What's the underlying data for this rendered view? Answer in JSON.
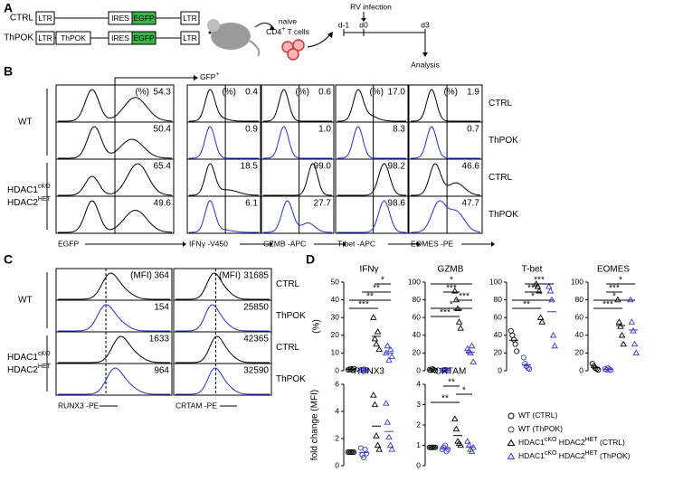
{
  "panel_labels": [
    "A",
    "B",
    "C",
    "D"
  ],
  "panel_a": {
    "constructs": [
      {
        "name": "CTRL",
        "parts": [
          "LTR",
          "IRES",
          "EGFP",
          "LTR"
        ]
      },
      {
        "name": "ThPOK",
        "parts": [
          "LTR",
          "ThPOK",
          "IRES",
          "EGFP",
          "LTR"
        ]
      }
    ],
    "cells": [
      "naive",
      "CD4",
      "+",
      " T cells"
    ],
    "infection": "RV infection",
    "days": [
      "d-1",
      "d0",
      "d3"
    ],
    "analysis": "Analysis"
  },
  "panel_b": {
    "gate": [
      "GFP",
      "+"
    ],
    "percent_label": "(%)",
    "groups": {
      "wt": "WT",
      "hdac": [
        [
          "HDAC1",
          "cKO"
        ],
        [
          "HDAC2",
          "HET"
        ]
      ]
    },
    "rows": [
      "CTRL",
      "ThPOK",
      "CTRL",
      "ThPOK"
    ],
    "columns": [
      {
        "axis": "EGFP",
        "values": [
          "54.3",
          "50.4",
          "65.4",
          "49.6"
        ]
      },
      {
        "axis": "IFNγ -V450",
        "values": [
          "0.4",
          "0.9",
          "18.5",
          "6.1"
        ]
      },
      {
        "axis": "GZMB -APC",
        "values": [
          "0.6",
          "1.0",
          "99.0",
          "27.7"
        ]
      },
      {
        "axis": "T-bet -APC",
        "values": [
          "17.0",
          "8.3",
          "98.2",
          "98.6"
        ]
      },
      {
        "axis": "EOMES -PE",
        "values": [
          "1.9",
          "0.7",
          "46.6",
          "47.7"
        ]
      }
    ]
  },
  "panel_c": {
    "mfi_label": "(MFI)",
    "groups": {
      "wt": "WT",
      "hdac": [
        [
          "HDAC1",
          "cKO"
        ],
        [
          "HDAC2",
          "HET"
        ]
      ]
    },
    "rows": [
      "CTRL",
      "ThPOK",
      "CTRL",
      "ThPOK"
    ],
    "columns": [
      {
        "axis": "RUNX3 -PE",
        "values": [
          "364",
          "154",
          "1633",
          "964"
        ]
      },
      {
        "axis": "CRTAM -PE",
        "values": [
          "31685",
          "25850",
          "42365",
          "32590"
        ]
      }
    ]
  },
  "panel_d": {
    "ylabels": [
      "(%)",
      "fold change (MFI)"
    ],
    "colors": [
      "#000000",
      "#3b3bd6",
      "#000000",
      "#3b3bd6"
    ],
    "markers": [
      "circle",
      "circle",
      "triangle",
      "triangle"
    ],
    "plots": [
      {
        "title": "IFNγ",
        "ylim": [
          0,
          50
        ],
        "yticks": [
          0,
          10,
          20,
          30,
          40,
          50
        ],
        "groups": [
          [
            0.5,
            0.8,
            1,
            0.3,
            1.2
          ],
          [
            0.5,
            0.4,
            0.8,
            0.6,
            0.3
          ],
          [
            30,
            18,
            15,
            22,
            12
          ],
          [
            10,
            14,
            6,
            12,
            8
          ]
        ],
        "significance": [
          {
            "label": "*",
            "groups": [
              2,
              3
            ]
          },
          {
            "label": "**",
            "groups": [
              1,
              3
            ]
          },
          {
            "label": "**",
            "groups": [
              0,
              3
            ]
          },
          {
            "label": "***",
            "groups": [
              0,
              2
            ]
          }
        ]
      },
      {
        "title": "GZMB",
        "ylim": [
          0,
          100
        ],
        "yticks": [
          0,
          20,
          40,
          60,
          80,
          100
        ],
        "groups": [
          [
            1,
            0.5,
            2,
            1,
            0.3
          ],
          [
            0.5,
            0.3,
            1,
            0.8,
            0.2
          ],
          [
            90,
            80,
            70,
            55,
            48
          ],
          [
            25,
            22,
            20,
            28,
            10
          ]
        ],
        "significance": [
          {
            "label": "*",
            "groups": [
              0,
              3
            ]
          },
          {
            "label": "***",
            "groups": [
              1,
              2
            ]
          },
          {
            "label": "***",
            "groups": [
              2,
              3
            ]
          },
          {
            "label": "*",
            "groups": [
              0,
              3
            ]
          },
          {
            "label": "***",
            "groups": [
              0,
              2
            ]
          }
        ]
      },
      {
        "title": "T-bet",
        "ylim": [
          0,
          100
        ],
        "yticks": [
          0,
          20,
          40,
          60,
          80,
          100
        ],
        "groups": [
          [
            45,
            40,
            35,
            30,
            22
          ],
          [
            15,
            8,
            5,
            3,
            2
          ],
          [
            98,
            95,
            90,
            60,
            55
          ],
          [
            95,
            90,
            80,
            40,
            28
          ]
        ],
        "significance": [
          {
            "label": "***",
            "groups": [
              1,
              3
            ]
          },
          {
            "label": "***",
            "groups": [
              1,
              2
            ]
          },
          {
            "label": "*",
            "groups": [
              0,
              3
            ]
          },
          {
            "label": "**",
            "groups": [
              0,
              2
            ]
          }
        ]
      },
      {
        "title": "EOMES",
        "ylim": [
          0,
          100
        ],
        "yticks": [
          0,
          20,
          40,
          60,
          80,
          100
        ],
        "groups": [
          [
            8,
            5,
            3,
            2,
            1
          ],
          [
            2,
            1,
            3,
            1.5,
            0.5
          ],
          [
            80,
            55,
            50,
            40,
            30
          ],
          [
            80,
            55,
            45,
            30,
            20
          ]
        ],
        "significance": [
          {
            "label": "*",
            "groups": [
              1,
              3
            ]
          },
          {
            "label": "***",
            "groups": [
              1,
              2
            ]
          },
          {
            "label": "*",
            "groups": [
              0,
              3
            ]
          },
          {
            "label": "***",
            "groups": [
              0,
              2
            ]
          }
        ]
      },
      {
        "title": "RUNX3",
        "ylim": [
          0,
          6
        ],
        "yticks": [
          0,
          2,
          4,
          6
        ],
        "groups": [
          [
            1,
            1,
            1,
            1,
            1
          ],
          [
            1.3,
            0.8,
            0.6,
            1.2,
            0.9
          ],
          [
            5.2,
            4.5,
            2.2,
            1.5,
            1.2
          ],
          [
            4.6,
            3.2,
            2.1,
            1.5,
            1.2
          ]
        ],
        "significance": []
      },
      {
        "title": "CRTAM",
        "ylim": [
          0,
          4
        ],
        "yticks": [
          0,
          1,
          2,
          3,
          4
        ],
        "groups": [
          [
            0.9,
            0.9,
            0.9,
            0.9,
            0.9
          ],
          [
            0.8,
            0.9,
            1,
            0.7,
            0.8
          ],
          [
            2.3,
            1.8,
            1.2,
            1.1,
            1.0
          ],
          [
            1.2,
            1.0,
            0.8,
            0.7,
            0.9
          ]
        ],
        "significance": [
          {
            "label": "**",
            "groups": [
              1,
              2
            ]
          },
          {
            "label": "*",
            "groups": [
              2,
              3
            ]
          },
          {
            "label": "**",
            "groups": [
              0,
              2
            ]
          }
        ]
      }
    ],
    "legend": [
      [
        "WT (CTRL)"
      ],
      [
        "WT (ThPOK)"
      ],
      [
        "HDAC1",
        "cKO",
        " HDAC2",
        "HET",
        " (CTRL)"
      ],
      [
        "HDAC1",
        "cKO",
        " HDAC2",
        "HET",
        " (ThPOK)"
      ]
    ]
  }
}
